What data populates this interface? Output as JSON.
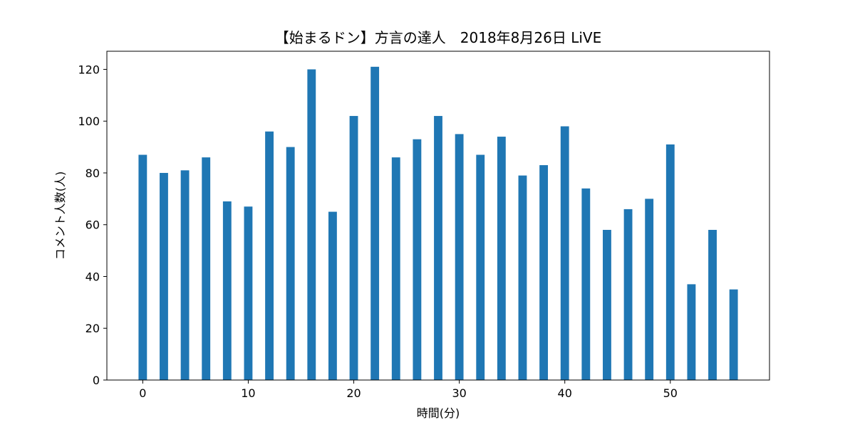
{
  "chart_data": {
    "type": "bar",
    "title": "【始まるドン】方言の達人　2018年8月26日 LiVE",
    "xlabel": "時間(分)",
    "ylabel": "コメント人数(人)",
    "x": [
      0,
      2,
      4,
      6,
      8,
      10,
      12,
      14,
      16,
      18,
      20,
      22,
      24,
      26,
      28,
      30,
      32,
      34,
      36,
      38,
      40,
      42,
      44,
      46,
      48,
      50,
      52,
      54,
      56
    ],
    "values": [
      87,
      80,
      81,
      86,
      69,
      67,
      96,
      90,
      120,
      65,
      102,
      121,
      86,
      93,
      102,
      95,
      87,
      94,
      79,
      83,
      98,
      74,
      58,
      66,
      70,
      91,
      37,
      58,
      35
    ],
    "xlim": [
      -3.4,
      59.4
    ],
    "ylim": [
      0,
      127
    ],
    "xticks": [
      0,
      10,
      20,
      30,
      40,
      50
    ],
    "yticks": [
      0,
      20,
      40,
      60,
      80,
      100,
      120
    ],
    "bar_width": 0.8,
    "color": "#1f77b4",
    "grid": false,
    "legend": "none"
  }
}
